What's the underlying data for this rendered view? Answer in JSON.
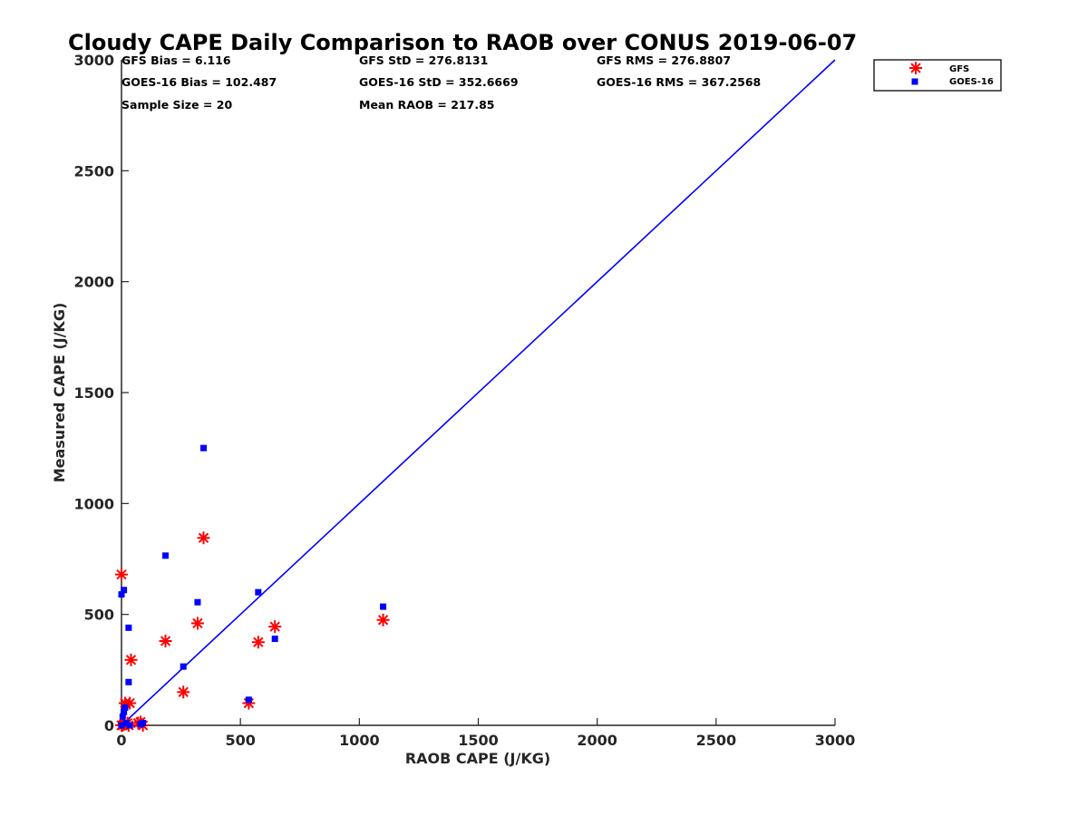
{
  "chart_data": {
    "type": "scatter",
    "title": "Cloudy CAPE Daily Comparison to RAOB over CONUS 2019-06-07",
    "xlabel": "RAOB CAPE (J/KG)",
    "ylabel": "Measured CAPE (J/KG)",
    "xlim": [
      0,
      3000
    ],
    "ylim": [
      0,
      3000
    ],
    "xticks": [
      "0",
      "500",
      "1000",
      "1500",
      "2000",
      "2500",
      "3000"
    ],
    "yticks": [
      "0",
      "500",
      "1000",
      "1500",
      "2000",
      "2500",
      "3000"
    ],
    "xtick_values": [
      0,
      500,
      1000,
      1500,
      2000,
      2500,
      3000
    ],
    "ytick_values": [
      0,
      500,
      1000,
      1500,
      2000,
      2500,
      3000
    ],
    "grid": false,
    "legend_position": "top-right outside",
    "stats": [
      [
        "GFS Bias = 6.116",
        "GFS StD = 276.8131",
        "GFS RMS = 276.8807"
      ],
      [
        "GOES-16 Bias = 102.487",
        "GOES-16 StD = 352.6669",
        "GOES-16 RMS = 367.2568"
      ],
      [
        "Sample Size = 20",
        "Mean RAOB = 217.85",
        ""
      ]
    ],
    "reference_line": {
      "x": [
        0,
        3000
      ],
      "y": [
        0,
        3000
      ],
      "color": "#0000ff"
    },
    "series": [
      {
        "name": "GFS",
        "marker": "asterisk",
        "color": "#ff0000",
        "x": [
          0,
          0,
          5,
          15,
          25,
          35,
          40,
          80,
          90,
          185,
          260,
          320,
          345,
          535,
          575,
          645,
          1100,
          30,
          10,
          70
        ],
        "y": [
          680,
          0,
          0,
          100,
          10,
          100,
          295,
          15,
          0,
          380,
          150,
          460,
          845,
          100,
          375,
          445,
          475,
          0,
          5,
          10
        ]
      },
      {
        "name": "GOES-16",
        "marker": "square",
        "color": "#0000ff",
        "x": [
          0,
          10,
          5,
          0,
          15,
          20,
          30,
          30,
          35,
          80,
          90,
          185,
          260,
          320,
          345,
          535,
          575,
          645,
          1100,
          10
        ],
        "y": [
          590,
          610,
          40,
          0,
          80,
          10,
          195,
          440,
          0,
          5,
          10,
          765,
          265,
          555,
          1250,
          115,
          600,
          390,
          535,
          60
        ]
      }
    ]
  }
}
